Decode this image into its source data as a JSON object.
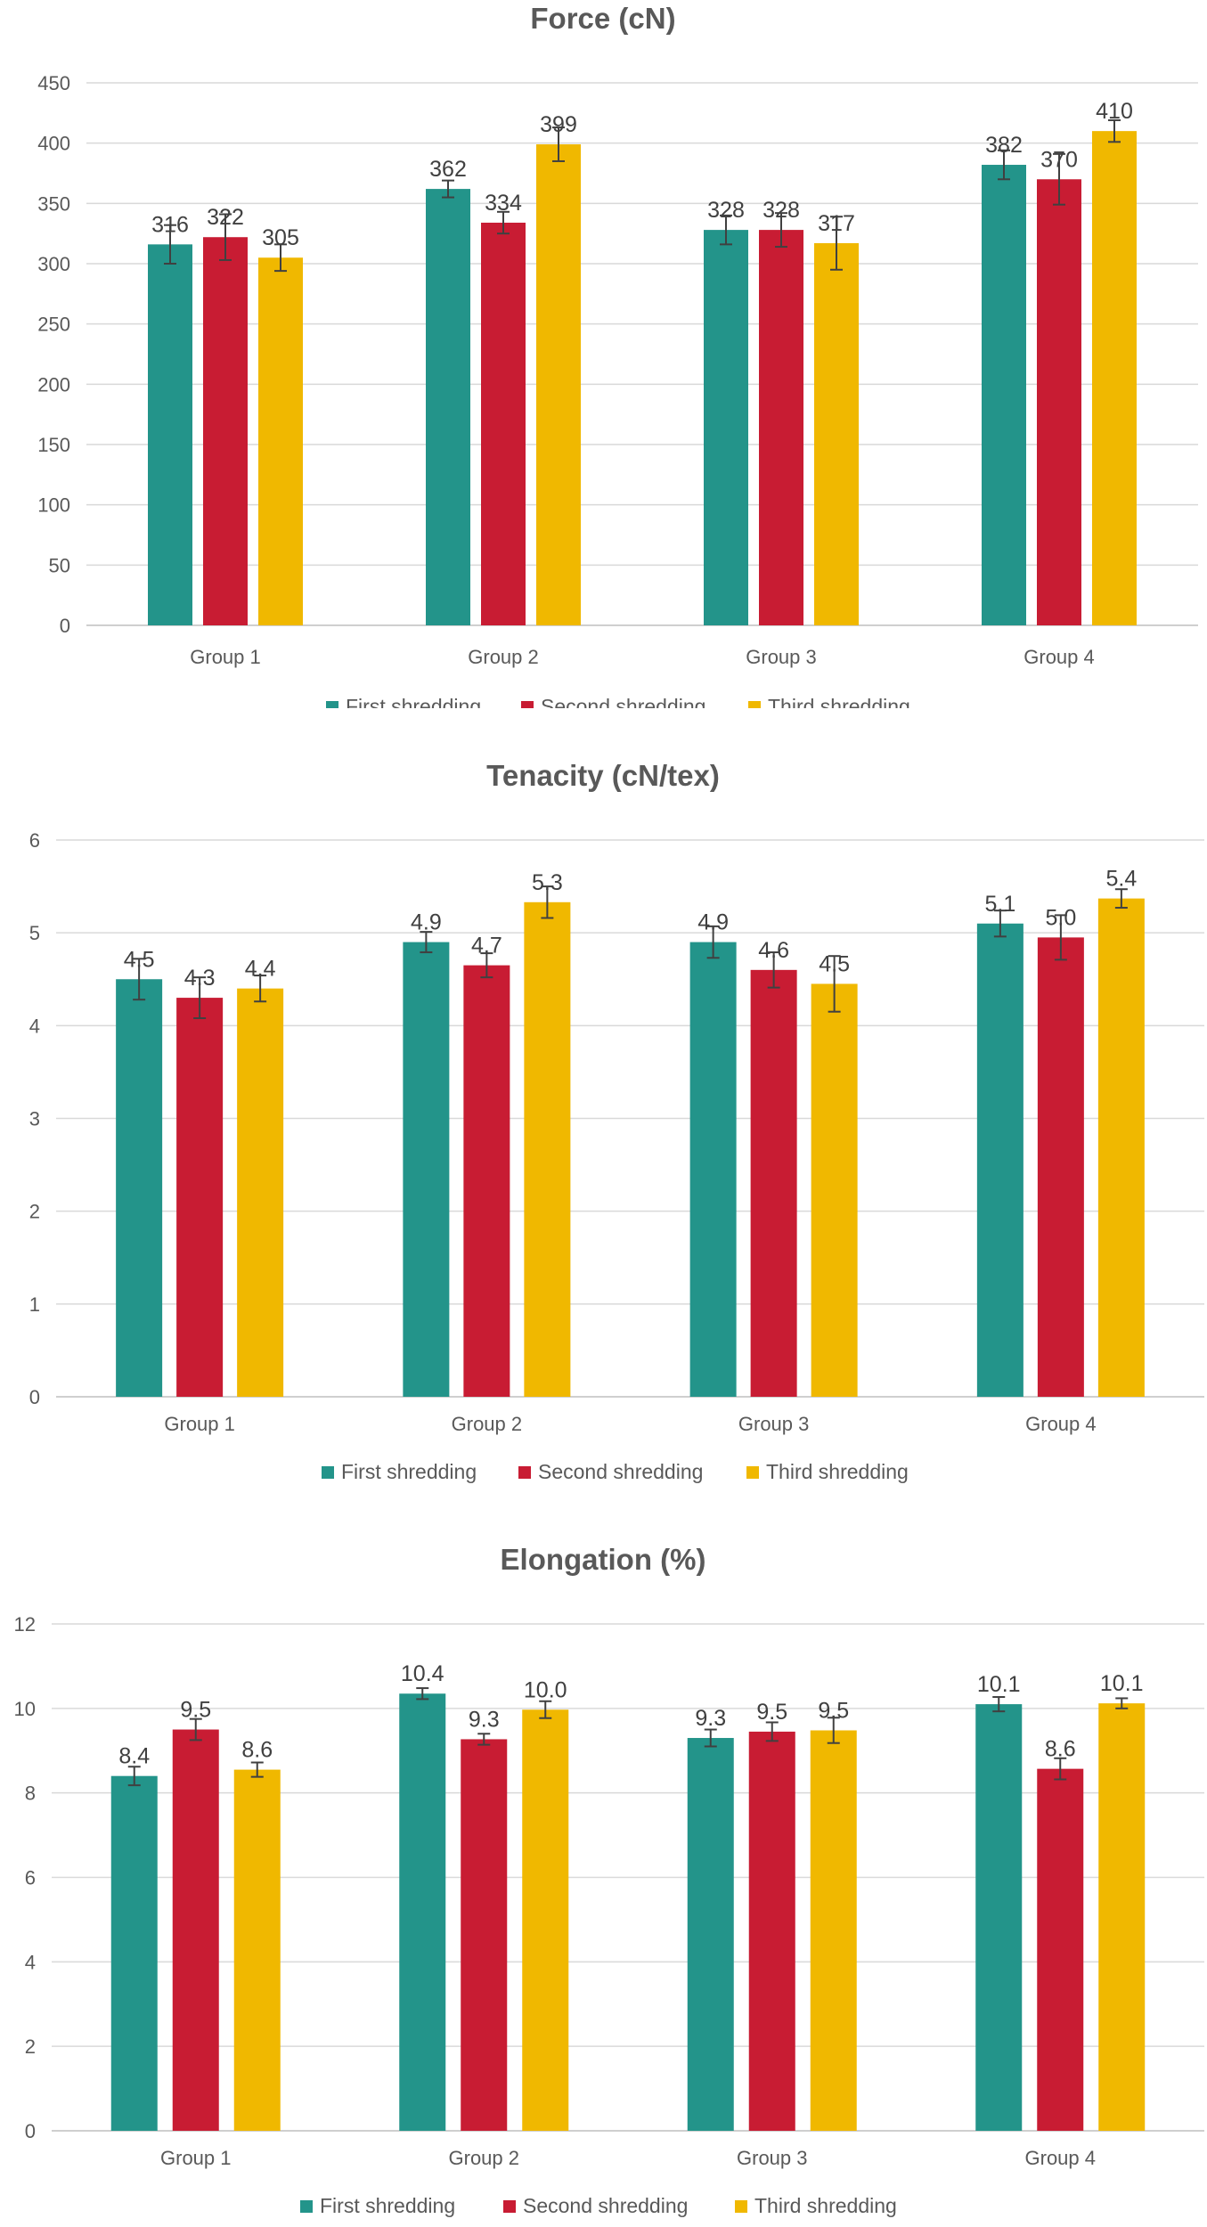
{
  "colors": {
    "first": "#23948a",
    "second": "#c81c33",
    "third": "#f0b800"
  },
  "chart_data": [
    {
      "type": "bar",
      "title": "Force (cN)",
      "categories": [
        "Group 1",
        "Group 2",
        "Group 3",
        "Group 4"
      ],
      "ylim": [
        0,
        450
      ],
      "yticks": [
        0,
        50,
        100,
        150,
        200,
        250,
        300,
        350,
        400,
        450
      ],
      "grid": true,
      "legend": "bottom",
      "decimals": 0,
      "series": [
        {
          "name": "First shredding",
          "values": [
            316,
            362,
            328,
            382
          ],
          "errors": [
            16,
            7,
            12,
            12
          ]
        },
        {
          "name": "Second shredding",
          "values": [
            322,
            334,
            328,
            370
          ],
          "errors": [
            19,
            9,
            14,
            21
          ]
        },
        {
          "name": "Third shredding",
          "values": [
            305,
            399,
            317,
            410
          ],
          "errors": [
            11,
            14,
            22,
            9
          ]
        }
      ]
    },
    {
      "type": "bar",
      "title": "Tenacity (cN/tex)",
      "categories": [
        "Group 1",
        "Group 2",
        "Group 3",
        "Group 4"
      ],
      "ylim": [
        0,
        6
      ],
      "yticks": [
        0,
        1,
        2,
        3,
        4,
        5,
        6
      ],
      "grid": true,
      "legend": "bottom",
      "decimals": 1,
      "series": [
        {
          "name": "First shredding",
          "values": [
            4.5,
            4.9,
            4.9,
            5.1
          ],
          "labels": [
            "4.5",
            "4.9",
            "4.9",
            "5.1"
          ],
          "errors": [
            0.22,
            0.11,
            0.17,
            0.14
          ]
        },
        {
          "name": "Second shredding",
          "values": [
            4.3,
            4.65,
            4.6,
            4.95
          ],
          "labels": [
            "4.3",
            "4.7",
            "4.6",
            "5.0"
          ],
          "errors": [
            0.22,
            0.13,
            0.19,
            0.24
          ]
        },
        {
          "name": "Third shredding",
          "values": [
            4.4,
            5.33,
            4.45,
            5.37
          ],
          "labels": [
            "4.4",
            "5.3",
            "4.5",
            "5.4"
          ],
          "errors": [
            0.14,
            0.17,
            0.3,
            0.1
          ]
        }
      ]
    },
    {
      "type": "bar",
      "title": "Elongation (%)",
      "categories": [
        "Group 1",
        "Group 2",
        "Group 3",
        "Group 4"
      ],
      "ylim": [
        0,
        12
      ],
      "yticks": [
        0,
        2,
        4,
        6,
        8,
        10,
        12
      ],
      "grid": true,
      "legend": "bottom",
      "decimals": 1,
      "series": [
        {
          "name": "First shredding",
          "values": [
            8.4,
            10.35,
            9.3,
            10.1
          ],
          "labels": [
            "8.4",
            "10.4",
            "9.3",
            "10.1"
          ],
          "errors": [
            0.22,
            0.13,
            0.2,
            0.17
          ]
        },
        {
          "name": "Second shredding",
          "values": [
            9.5,
            9.27,
            9.45,
            8.57
          ],
          "labels": [
            "9.5",
            "9.3",
            "9.5",
            "8.6"
          ],
          "errors": [
            0.25,
            0.13,
            0.22,
            0.25
          ]
        },
        {
          "name": "Third shredding",
          "values": [
            8.55,
            9.97,
            9.48,
            10.12
          ],
          "labels": [
            "8.6",
            "10.0",
            "9.5",
            "10.1"
          ],
          "errors": [
            0.17,
            0.2,
            0.3,
            0.12
          ]
        }
      ]
    }
  ]
}
